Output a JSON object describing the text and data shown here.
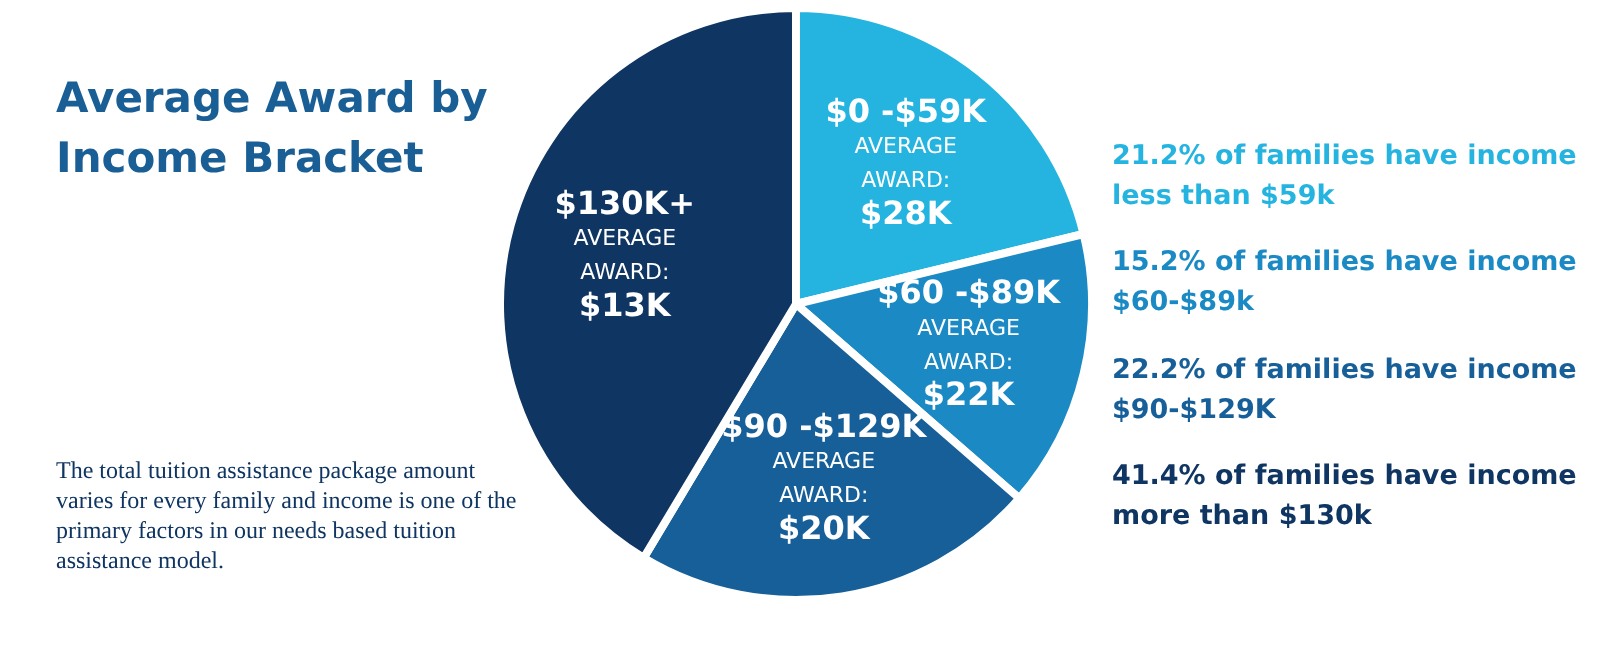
{
  "chart_data": {
    "type": "pie",
    "title": "Average Award by Income Bracket",
    "categories": [
      "$0 -$59K",
      "$60 -$89K",
      "$90 -$129K",
      "$130K+"
    ],
    "values": [
      21.2,
      15.2,
      22.2,
      41.4
    ],
    "colors": [
      "#25b4e0",
      "#1b8ac4",
      "#175f98",
      "#0f3562"
    ],
    "annotations": [
      "AVERAGE AWARD: $28K",
      "AVERAGE AWARD: $22K",
      "AVERAGE AWARD: $20K",
      "AVERAGE AWARD: $13K",
      "21.2% of families have income less than $59k",
      "15.2% of families have income $60-$89k",
      "22.2% of families have income $90-$129K",
      "41.4% of families have income more than $130k",
      "The total tuition assistance package amount varies for every family and income is one of the primary factors in our needs based tuition assistance model."
    ]
  }
}
